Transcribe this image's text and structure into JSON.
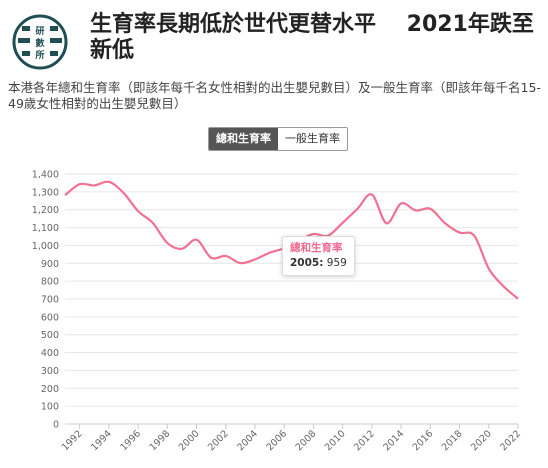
{
  "header": {
    "logo_text": [
      "研",
      "數",
      "所"
    ],
    "title": "生育率長期低於世代更替水平    2021年跌至新低",
    "subtitle": "本港各年總和生育率（即該年每千名女性相對的出生嬰兒數目）及一般生育率（即該年每千名15-49歲女性相對的出生嬰兒數目）"
  },
  "toggle": {
    "active_label": "總和生育率",
    "inactive_label": "一般生育率"
  },
  "tooltip": {
    "title": "總和生育率",
    "year": "2005:",
    "value": "959"
  },
  "colors": {
    "line": "#f07292",
    "grid": "#e6e6e6",
    "logo": "#1f4f52"
  },
  "chart_data": {
    "type": "line",
    "series": [
      {
        "name": "總和生育率",
        "x": [
          1991,
          1992,
          1993,
          1994,
          1995,
          1996,
          1997,
          1998,
          1999,
          2000,
          2001,
          2002,
          2003,
          2004,
          2005,
          2006,
          2007,
          2008,
          2009,
          2010,
          2011,
          2012,
          2013,
          2014,
          2015,
          2016,
          2017,
          2018,
          2019,
          2020,
          2021,
          2022
        ],
        "values": [
          1281,
          1343,
          1336,
          1356,
          1295,
          1192,
          1127,
          1014,
          981,
          1032,
          931,
          941,
          901,
          922,
          959,
          984,
          1028,
          1064,
          1055,
          1127,
          1204,
          1285,
          1124,
          1235,
          1196,
          1205,
          1125,
          1072,
          1055,
          870,
          772,
          701
        ]
      }
    ],
    "ylim": [
      0,
      1400
    ],
    "yticks": [
      0,
      100,
      200,
      300,
      400,
      500,
      600,
      700,
      800,
      900,
      1000,
      1100,
      1200,
      1300,
      1400
    ],
    "ytick_labels": [
      "0",
      "100",
      "200",
      "300",
      "400",
      "500",
      "600",
      "700",
      "800",
      "900",
      "1,000",
      "1,100",
      "1,200",
      "1,300",
      "1,400"
    ],
    "xticks": [
      1992,
      1994,
      1996,
      1998,
      2000,
      2002,
      2004,
      2006,
      2008,
      2010,
      2012,
      2014,
      2016,
      2018,
      2020,
      2022
    ],
    "xlim": [
      1991,
      2022
    ],
    "grid": true,
    "legend": "none",
    "title": "",
    "xlabel": "",
    "ylabel": ""
  }
}
